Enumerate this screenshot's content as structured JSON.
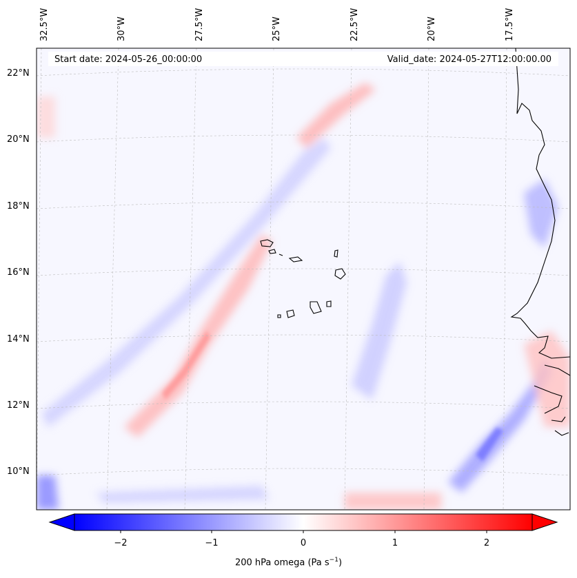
{
  "map": {
    "start_date": "Start date: 2024-05-26_00:00:00",
    "valid_date": "Valid_date: 2024-05-27T12:00:00.00",
    "longitude_labels": [
      "32.5°W",
      "30°W",
      "27.5°W",
      "25°W",
      "22.5°W",
      "20°W",
      "17.5°W"
    ],
    "latitude_labels": [
      "22°N",
      "20°N",
      "18°N",
      "16°N",
      "14°N",
      "12°N",
      "10°N"
    ],
    "gridlines": true,
    "coastlines": true
  },
  "colorbar": {
    "label_text": "200 hPa omega (Pa s",
    "label_sup": "−1",
    "label_close": ")",
    "tick_labels": [
      "−2",
      "−1",
      "0",
      "1",
      "2"
    ],
    "min": -2.75,
    "max": 2.75,
    "extend": "both",
    "colors": {
      "negative": "#0000ff",
      "zero": "#ffffff",
      "positive": "#ff0000"
    }
  }
}
